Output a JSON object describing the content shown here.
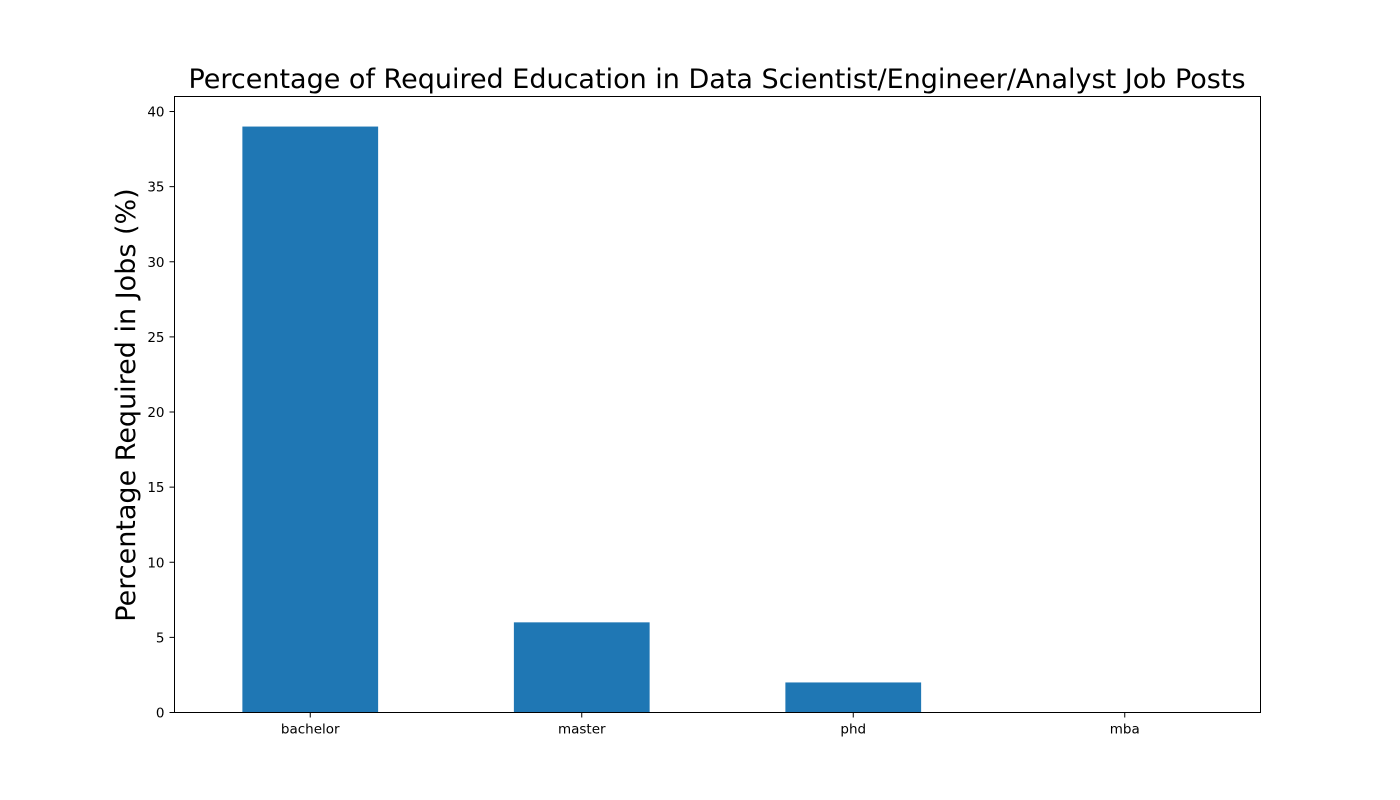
{
  "chart_data": {
    "type": "bar",
    "title": "Percentage of Required Education in Data Scientist/Engineer/Analyst Job Posts",
    "xlabel": "",
    "ylabel": "Percentage Required in Jobs (%)",
    "categories": [
      "bachelor",
      "master",
      "phd",
      "mba"
    ],
    "values": [
      39.0,
      6.0,
      2.0,
      0.0
    ],
    "ylim": [
      0,
      41
    ],
    "yticks": [
      "0",
      "5",
      "10",
      "15",
      "20",
      "25",
      "30",
      "35",
      "40"
    ],
    "grid": false,
    "legend": "none",
    "bar_color": "#1f77b4"
  }
}
